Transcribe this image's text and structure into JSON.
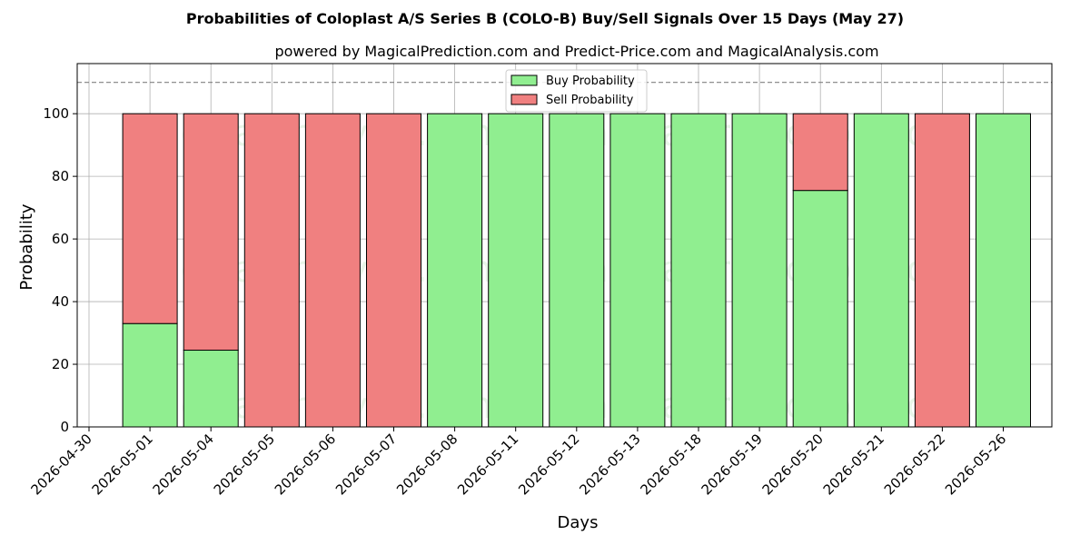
{
  "chart_data": {
    "type": "bar",
    "stacked": true,
    "title": "Probabilities of Coloplast A/S Series B (COLO-B) Buy/Sell Signals Over 15 Days (May 27)",
    "subtitle": "powered by MagicalPrediction.com and Predict-Price.com and MagicalAnalysis.com",
    "xlabel": "Days",
    "ylabel": "Probability",
    "ylim": [
      0,
      116
    ],
    "yticks": [
      0,
      20,
      40,
      60,
      80,
      100
    ],
    "x_tick_labels": [
      "2026-04-30",
      "2026-05-01",
      "2026-05-04",
      "2026-05-05",
      "2026-05-06",
      "2026-05-07",
      "2026-05-08",
      "2026-05-11",
      "2026-05-12",
      "2026-05-13",
      "2026-05-18",
      "2026-05-19",
      "2026-05-20",
      "2026-05-21",
      "2026-05-22",
      "2026-05-26"
    ],
    "categories": [
      "2026-05-01",
      "2026-05-04",
      "2026-05-05",
      "2026-05-06",
      "2026-05-07",
      "2026-05-08",
      "2026-05-11",
      "2026-05-12",
      "2026-05-13",
      "2026-05-18",
      "2026-05-19",
      "2026-05-20",
      "2026-05-21",
      "2026-05-22",
      "2026-05-26"
    ],
    "series": [
      {
        "name": "Buy Probability",
        "color": "#90ee90",
        "values": [
          33,
          24.5,
          0,
          0,
          0,
          100,
          100,
          100,
          100,
          100,
          100,
          75.5,
          100,
          0,
          100
        ]
      },
      {
        "name": "Sell Probability",
        "color": "#f08080",
        "values": [
          67,
          75.5,
          100,
          100,
          100,
          0,
          0,
          0,
          0,
          0,
          0,
          24.5,
          0,
          100,
          0
        ]
      }
    ],
    "reference_line": {
      "y": 110,
      "style": "dashed",
      "color": "#808080"
    },
    "grid": true,
    "legend_position": "top-center",
    "watermarks": [
      "MagicalAnalysis.com",
      "MagicalPrediction.com"
    ]
  }
}
